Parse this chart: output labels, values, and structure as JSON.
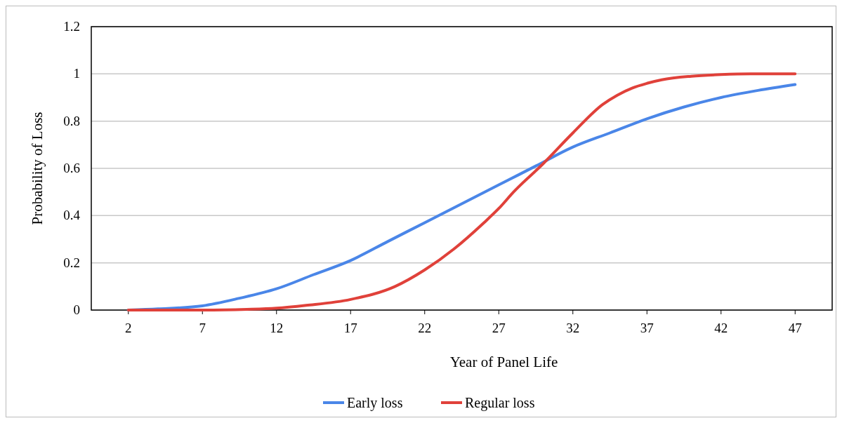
{
  "chart_data": {
    "type": "line",
    "xlabel": "Year of Panel Life",
    "ylabel": "Probability of Loss",
    "xlim": [
      -0.5,
      49.5
    ],
    "xticks": [
      2,
      7,
      12,
      17,
      22,
      27,
      32,
      37,
      42,
      47
    ],
    "ylim": [
      0,
      1.2
    ],
    "yticks": [
      0,
      0.2,
      0.4,
      0.6,
      0.8,
      1,
      1.2
    ],
    "grid": "y",
    "legend": "bottom",
    "line_style": "solid",
    "marker": "none",
    "series": [
      {
        "name": "Early loss",
        "color": "#4a86e8",
        "x": [
          2,
          4,
          7,
          9.5,
          12,
          14.5,
          17,
          19.5,
          22,
          24.5,
          27,
          29.5,
          32,
          34.5,
          37,
          39.5,
          42,
          44.5,
          47
        ],
        "values": [
          0,
          0.005,
          0.018,
          0.05,
          0.09,
          0.15,
          0.21,
          0.29,
          0.37,
          0.45,
          0.53,
          0.61,
          0.69,
          0.75,
          0.81,
          0.86,
          0.9,
          0.93,
          0.955
        ]
      },
      {
        "name": "Regular loss",
        "color": "#e0413a",
        "x": [
          2,
          7,
          10,
          12,
          14,
          17,
          20,
          22,
          24,
          26,
          27,
          28,
          30,
          32,
          34,
          35,
          36,
          37,
          38,
          40,
          42,
          44,
          47
        ],
        "values": [
          0,
          0,
          0.003,
          0.008,
          0.02,
          0.045,
          0.1,
          0.17,
          0.26,
          0.37,
          0.43,
          0.5,
          0.62,
          0.75,
          0.87,
          0.91,
          0.94,
          0.96,
          0.975,
          0.99,
          0.997,
          1,
          1
        ]
      }
    ]
  }
}
